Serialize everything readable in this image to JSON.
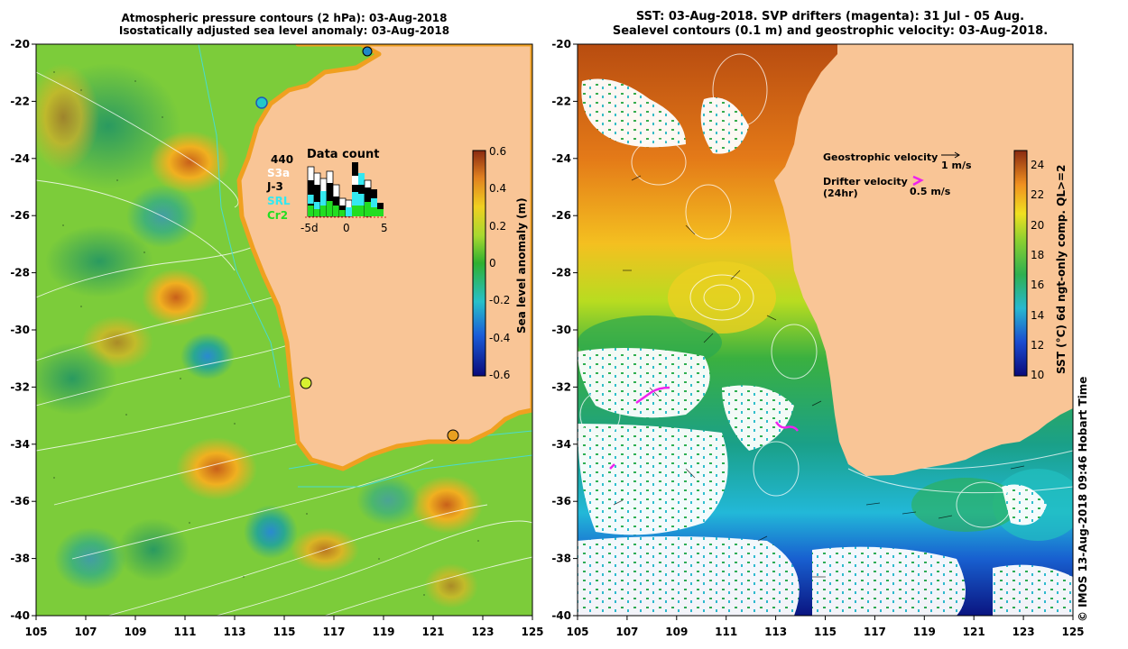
{
  "left_panel": {
    "title_line1": "Atmospheric pressure contours (2 hPa): 03-Aug-2018",
    "title_line2": "Isostatically adjusted sea level anomaly: 03-Aug-2018",
    "x_ticks": [
      "105",
      "107",
      "109",
      "111",
      "113",
      "115",
      "117",
      "119",
      "121",
      "123",
      "125"
    ],
    "y_ticks": [
      "-20",
      "-22",
      "-24",
      "-26",
      "-28",
      "-30",
      "-32",
      "-34",
      "-36",
      "-38",
      "-40"
    ],
    "colorbar": {
      "label": "Sea level anomaly (m)",
      "ticks": [
        "0.6",
        "0.4",
        "0.2",
        "0",
        "-0.2",
        "-0.4",
        "-0.6"
      ],
      "range": [
        -0.6,
        0.6
      ]
    },
    "data_count": {
      "title": "Data count",
      "legend": [
        {
          "label": "440",
          "color": "#000000"
        },
        {
          "label": "S3a",
          "color": "#ffffff"
        },
        {
          "label": "J-3",
          "color": "#000000"
        },
        {
          "label": "SRL",
          "color": "#33e8f0"
        },
        {
          "label": "Cr2",
          "color": "#22dd22"
        }
      ],
      "x_ticks": [
        "-5d",
        "0",
        "5"
      ]
    }
  },
  "right_panel": {
    "title_line1": "SST: 03-Aug-2018. SVP drifters (magenta): 31 Jul - 05 Aug.",
    "title_line2": "Sealevel contours (0.1 m) and geostrophic velocity: 03-Aug-2018.",
    "x_ticks": [
      "105",
      "107",
      "109",
      "111",
      "113",
      "115",
      "117",
      "119",
      "121",
      "123",
      "125"
    ],
    "y_ticks": [
      "-20",
      "-22",
      "-24",
      "-26",
      "-28",
      "-30",
      "-32",
      "-34",
      "-36",
      "-38",
      "-40"
    ],
    "colorbar": {
      "label": "SST (°C) 6d ngt-only comp. QL>=2",
      "ticks": [
        "24",
        "22",
        "20",
        "18",
        "16",
        "14",
        "12",
        "10"
      ],
      "range": [
        10,
        25
      ]
    },
    "geostrophic_label": "Geostrophic velocity",
    "geostrophic_scale": "1 m/s",
    "drifter_label": "Drifter velocity",
    "drifter_label2": "(24hr)",
    "drifter_scale": "0.5 m/s"
  },
  "timestamp": "© IMOS 13-Aug-2018 09:46 Hobart Time",
  "colors": {
    "land": "#f9c596",
    "drifter": "#ee22ee"
  }
}
